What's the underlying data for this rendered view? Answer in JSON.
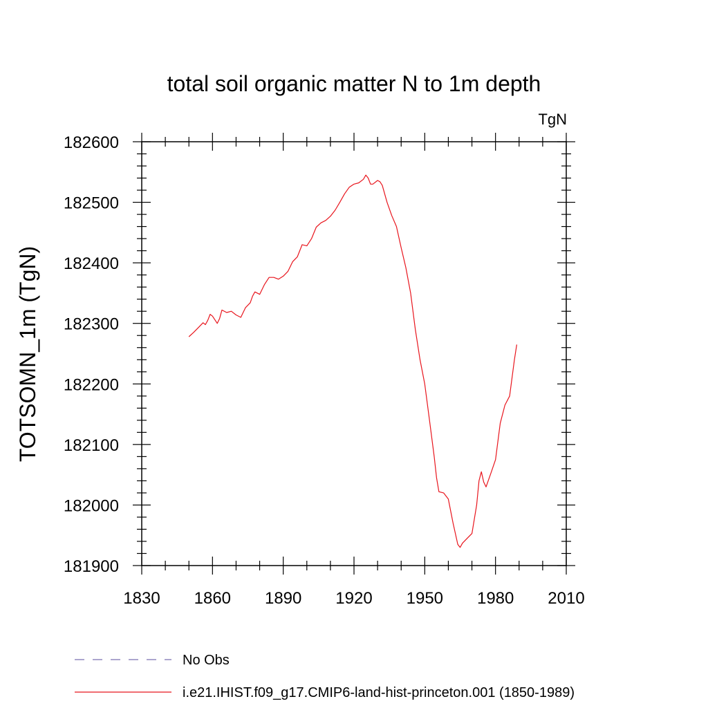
{
  "chart_data": {
    "type": "line",
    "title": "total soil organic matter N to 1m depth",
    "units": "TgN",
    "ylabel": "TOTSOMN_1m  (TgN)",
    "xlabel": "",
    "xlim": [
      1830,
      2010
    ],
    "ylim": [
      181900,
      182600
    ],
    "xticks": [
      "1830",
      "1860",
      "1890",
      "1920",
      "1950",
      "1980",
      "2010"
    ],
    "yticks": [
      "181900",
      "182000",
      "182100",
      "182200",
      "182300",
      "182400",
      "182500",
      "182600"
    ],
    "grid": false,
    "legend": {
      "placement": "bottom"
    },
    "series": [
      {
        "name": "No Obs",
        "color": "#7b6fb0",
        "dash": "dashed",
        "x": [],
        "y": []
      },
      {
        "name": "i.e21.IHIST.f09_g17.CMIP6-land-hist-princeton.001 (1850-1989)",
        "color": "#e8141c",
        "dash": "solid",
        "x": [
          1850,
          1852,
          1854,
          1856,
          1857,
          1858,
          1859,
          1860,
          1862,
          1863,
          1864,
          1866,
          1868,
          1870,
          1872,
          1874,
          1876,
          1877,
          1878,
          1880,
          1882,
          1884,
          1886,
          1888,
          1890,
          1892,
          1894,
          1896,
          1898,
          1900,
          1902,
          1904,
          1906,
          1908,
          1910,
          1912,
          1914,
          1916,
          1918,
          1920,
          1922,
          1924,
          1925,
          1926,
          1927,
          1928,
          1930,
          1931,
          1932,
          1934,
          1936,
          1938,
          1940,
          1942,
          1944,
          1946,
          1948,
          1950,
          1952,
          1954,
          1955,
          1956,
          1958,
          1960,
          1962,
          1964,
          1965,
          1966,
          1968,
          1970,
          1972,
          1973,
          1974,
          1975,
          1976,
          1978,
          1980,
          1982,
          1984,
          1986,
          1988,
          1989
        ],
        "y": [
          182278,
          182285,
          182293,
          182301,
          182298,
          182305,
          182315,
          182312,
          182300,
          182308,
          182322,
          182318,
          182320,
          182314,
          182310,
          182326,
          182334,
          182345,
          182352,
          182348,
          182364,
          182376,
          182376,
          182373,
          182378,
          182386,
          182402,
          182410,
          182430,
          182428,
          182440,
          182459,
          182466,
          182470,
          182477,
          182487,
          182500,
          182514,
          182525,
          182530,
          182532,
          182538,
          182545,
          182540,
          182530,
          182530,
          182536,
          182534,
          182528,
          182500,
          182478,
          182460,
          182425,
          182392,
          182350,
          182290,
          182240,
          182200,
          182140,
          182080,
          182045,
          182022,
          182020,
          182010,
          181970,
          181935,
          181930,
          181937,
          181945,
          181953,
          182000,
          182040,
          182055,
          182038,
          182030,
          182052,
          182075,
          182135,
          182165,
          182180,
          182240,
          182265
        ]
      }
    ]
  }
}
